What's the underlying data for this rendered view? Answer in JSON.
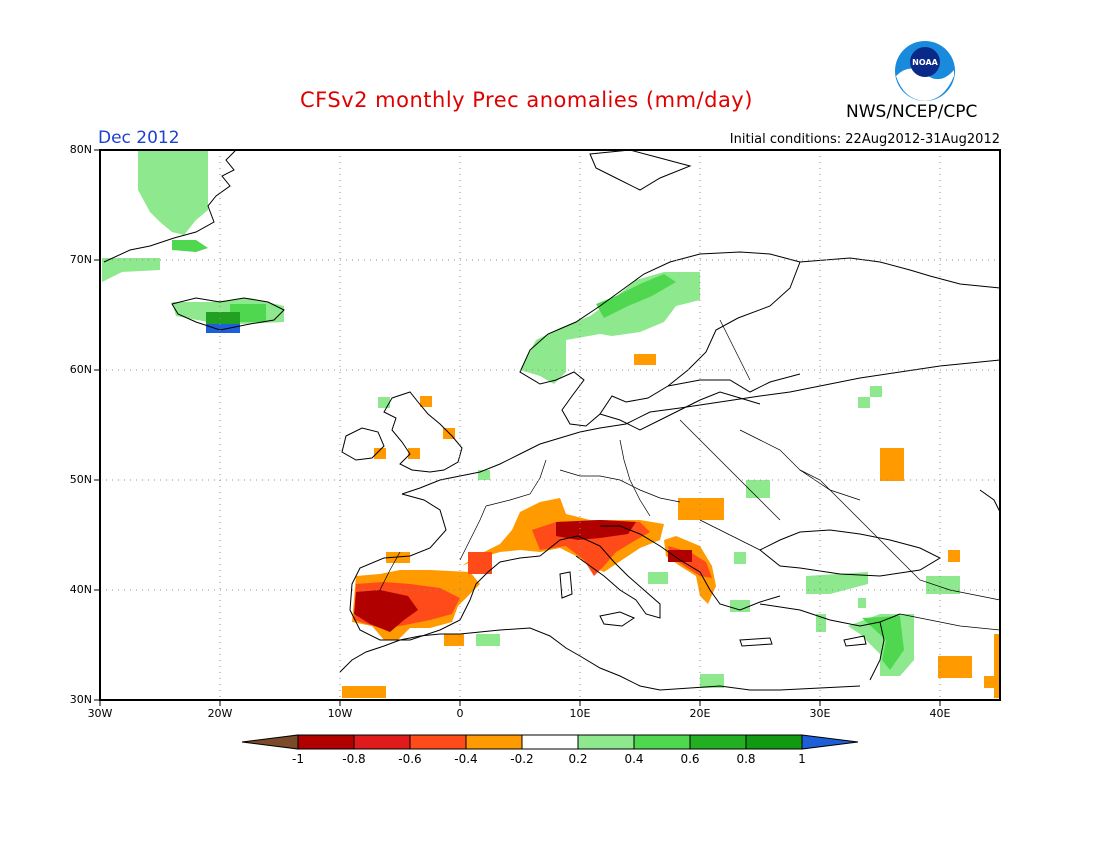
{
  "title": "CFSv2 monthly Prec anomalies (mm/day)",
  "agency": "NWS/NCEP/CPC",
  "logo_text": "NOAA",
  "valid_month": "Dec 2012",
  "initial_conditions": "Initial conditions: 22Aug2012-31Aug2012",
  "lat_labels": [
    "80N",
    "70N",
    "60N",
    "50N",
    "40N",
    "30N"
  ],
  "lon_labels": [
    "30W",
    "20W",
    "10W",
    "0",
    "10E",
    "20E",
    "30E",
    "40E"
  ],
  "legend": {
    "ticks": [
      "-1",
      "-0.8",
      "-0.6",
      "-0.4",
      "-0.2",
      "0.2",
      "0.4",
      "0.6",
      "0.8",
      "1"
    ],
    "colors": [
      "#7a4a2a",
      "#b00000",
      "#e01b1b",
      "#ff4a1a",
      "#ff9a00",
      "#ffffff",
      "#8ee88e",
      "#4fd84f",
      "#22b022",
      "#119911",
      "#1e5fd8"
    ]
  },
  "map_colors": {
    "land_outline": "#000000",
    "grid": "#909090",
    "green_light": "#8ee88e",
    "green_mid": "#4fd84f",
    "green_dark": "#22a022",
    "blue": "#1e5fd8",
    "orange": "#ff9a00",
    "orange_red": "#ff4a1a",
    "red": "#e01b1b",
    "dark_red": "#b00000"
  }
}
